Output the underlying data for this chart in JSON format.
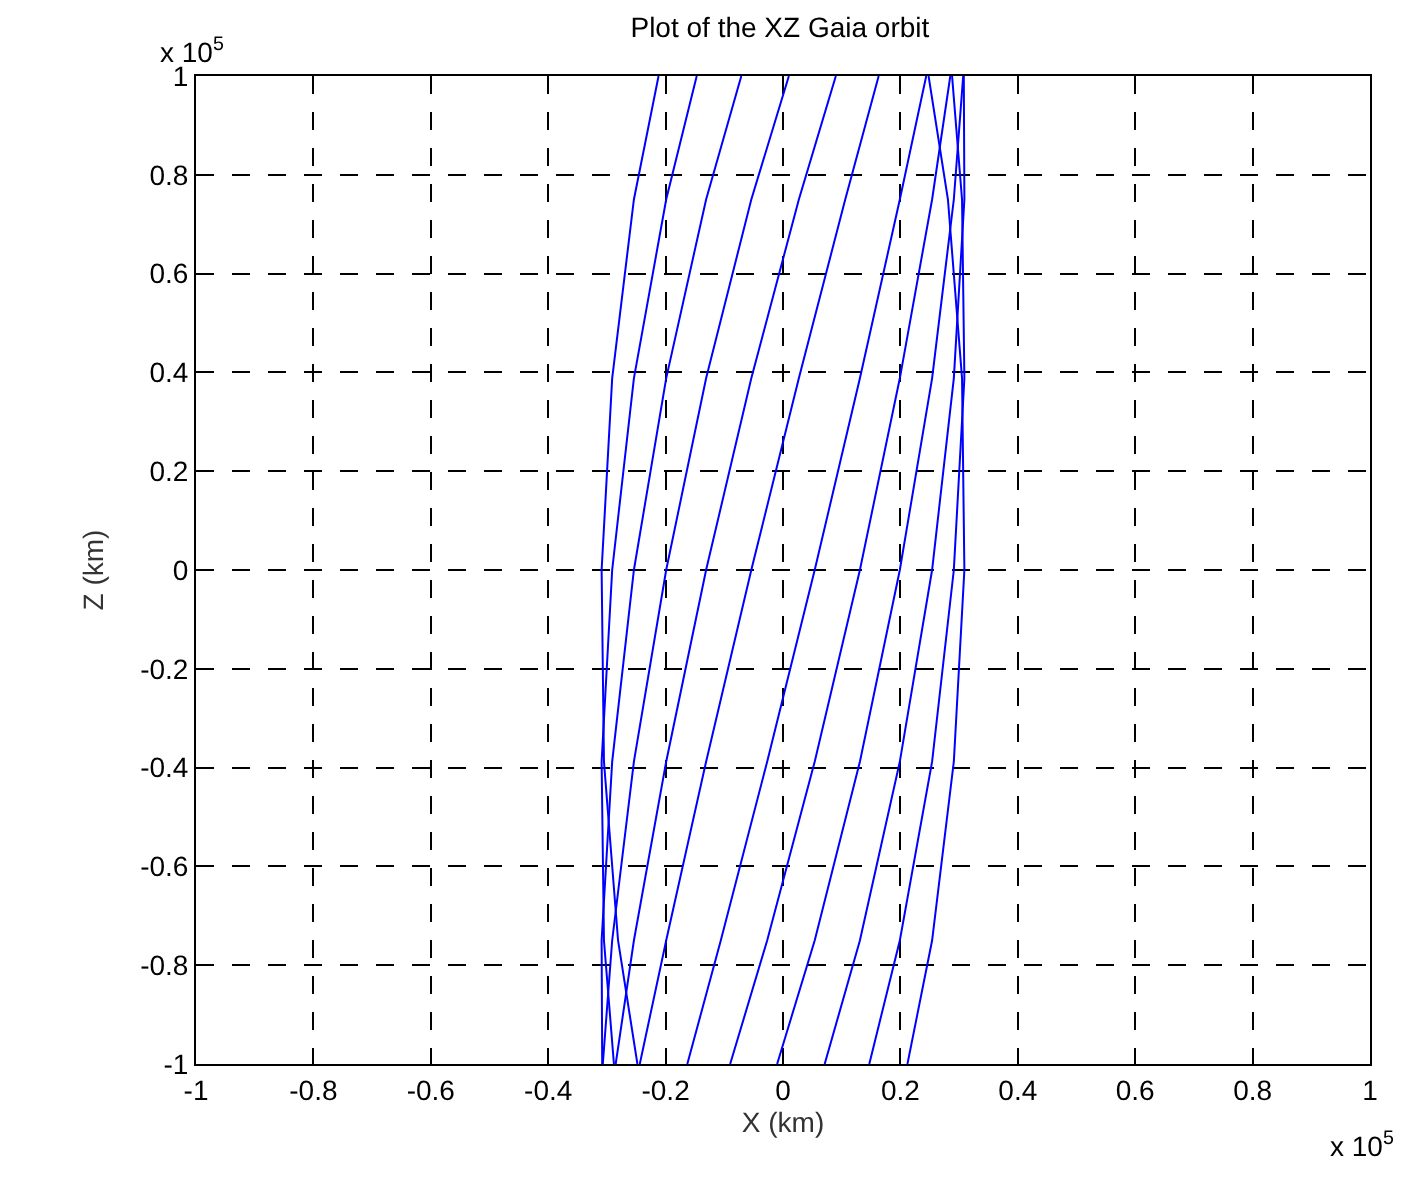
{
  "chart_data": {
    "type": "line",
    "title": "Plot of the XZ Gaia orbit",
    "xlabel": "X (km)",
    "ylabel": "Z (km)",
    "annotations": [
      "x 10$^{5}$",
      "x 10$^{5}$"
    ],
    "xlim": [
      -1,
      1
    ],
    "ylim": [
      -1,
      1
    ],
    "xticks": [
      -1,
      -0.8,
      -0.6,
      -0.4,
      -0.2,
      0,
      0.2,
      0.4,
      0.6,
      0.8,
      1
    ],
    "yticks": [
      -1,
      -0.8,
      -0.6,
      -0.4,
      -0.2,
      0,
      0.2,
      0.4,
      0.6,
      0.8,
      1
    ],
    "grid": true,
    "marker": "none",
    "line_style": "solid",
    "series": [
      {
        "color": "#0000ff",
        "x": [
          -0.244,
          -0.199,
          -0.131,
          -0.054,
          0.027,
          0.106,
          0.163,
          null,
          0.244,
          0.199,
          0.131,
          0.054,
          -0.027,
          -0.106,
          -0.163,
          null,
          -0.285,
          -0.254,
          -0.199,
          -0.131,
          -0.054,
          0.027,
          0.09,
          null,
          0.285,
          0.254,
          0.199,
          0.131,
          0.054,
          -0.027,
          -0.09,
          null,
          -0.307,
          -0.291,
          -0.254,
          -0.199,
          -0.131,
          -0.054,
          0.01,
          null,
          0.307,
          0.291,
          0.254,
          0.199,
          0.131,
          0.054,
          -0.01,
          null,
          -0.308,
          -0.309,
          -0.291,
          -0.254,
          -0.199,
          -0.131,
          -0.071,
          null,
          0.308,
          0.309,
          0.291,
          0.254,
          0.199,
          0.131,
          0.071,
          null,
          -0.288,
          -0.305,
          -0.309,
          -0.291,
          -0.254,
          -0.199,
          -0.147,
          null,
          0.288,
          0.305,
          0.309,
          0.291,
          0.254,
          0.199,
          0.147,
          null,
          -0.248,
          -0.281,
          -0.305,
          -0.309,
          -0.291,
          -0.254,
          -0.212,
          null,
          0.248,
          0.281,
          0.305,
          0.309,
          0.291,
          0.254,
          0.212
        ],
        "values": [
          -1,
          -0.75,
          -0.388,
          0,
          0.388,
          0.75,
          1,
          null,
          1,
          0.75,
          0.388,
          0,
          -0.388,
          -0.75,
          -1,
          null,
          -1,
          -0.75,
          -0.388,
          0,
          0.388,
          0.75,
          1,
          null,
          1,
          0.75,
          0.388,
          0,
          -0.388,
          -0.75,
          -1,
          null,
          -1,
          -0.75,
          -0.388,
          0,
          0.388,
          0.75,
          1,
          null,
          1,
          0.75,
          0.388,
          0,
          -0.388,
          -0.75,
          -1,
          null,
          -1,
          -0.75,
          -0.388,
          0,
          0.388,
          0.75,
          1,
          null,
          1,
          0.75,
          0.388,
          0,
          -0.388,
          -0.75,
          -1,
          null,
          -1,
          -0.75,
          -0.388,
          0,
          0.388,
          0.75,
          1,
          null,
          1,
          0.75,
          0.388,
          0,
          -0.388,
          -0.75,
          -1,
          null,
          -1,
          -0.75,
          -0.388,
          0,
          0.388,
          0.75,
          1,
          null,
          1,
          0.75,
          0.388,
          0,
          -0.388,
          -0.75,
          -1
        ]
      }
    ]
  }
}
